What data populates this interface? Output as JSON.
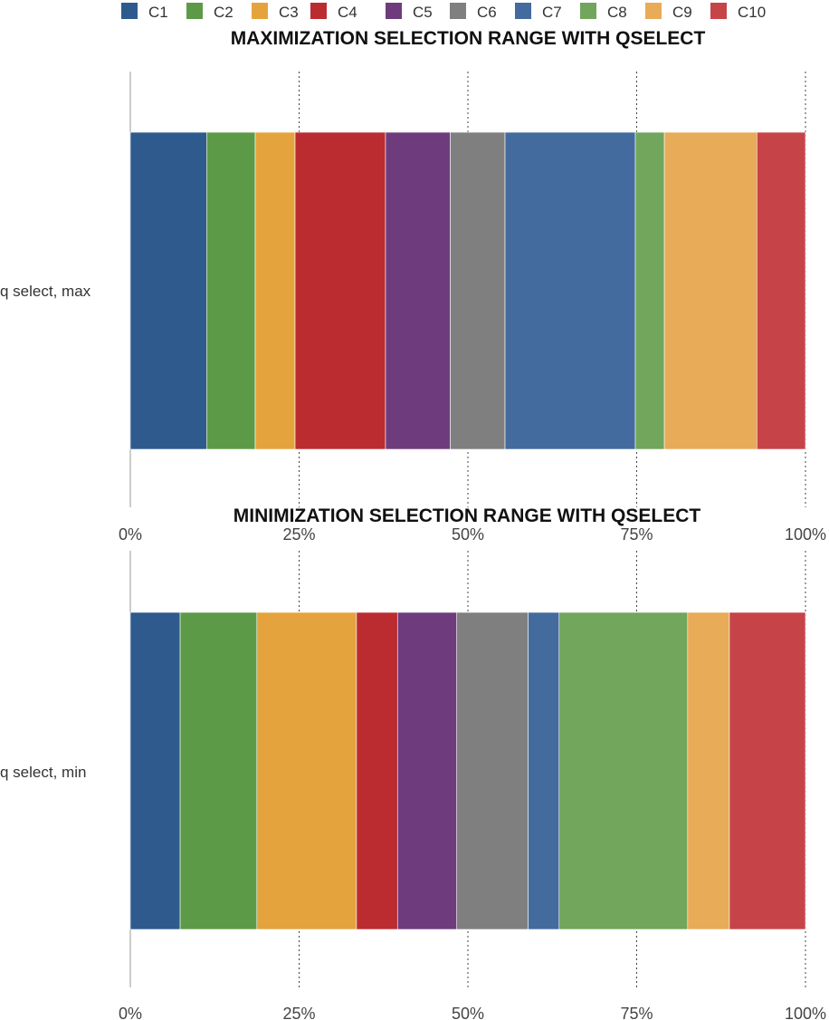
{
  "legend": {
    "series": [
      "C1",
      "C2",
      "C3",
      "C4",
      "C5",
      "C6",
      "C7",
      "C8",
      "C9",
      "C10"
    ],
    "colors": [
      "#2e5a8e",
      "#5d9a48",
      "#e5a33d",
      "#bb2c30",
      "#6e3c7c",
      "#7f7f7f",
      "#436b9e",
      "#71a65c",
      "#e8ab57",
      "#c64448"
    ]
  },
  "chart_data": [
    {
      "type": "bar",
      "orientation": "horizontal",
      "stacked": "percent",
      "title": "MAXIMIZATION SELECTION RANGE WITH QSELECT",
      "categories": [
        "q select, max"
      ],
      "xlim": [
        0,
        100
      ],
      "xticks": [
        "0%",
        "25%",
        "50%",
        "75%",
        "100%"
      ],
      "grid": "vertical dotted",
      "series": [
        {
          "name": "C1",
          "values": [
            11.3
          ]
        },
        {
          "name": "C2",
          "values": [
            7.2
          ]
        },
        {
          "name": "C3",
          "values": [
            5.9
          ]
        },
        {
          "name": "C4",
          "values": [
            13.4
          ]
        },
        {
          "name": "C5",
          "values": [
            9.6
          ]
        },
        {
          "name": "C6",
          "values": [
            8.1
          ]
        },
        {
          "name": "C7",
          "values": [
            19.3
          ]
        },
        {
          "name": "C8",
          "values": [
            4.3
          ]
        },
        {
          "name": "C9",
          "values": [
            13.7
          ]
        },
        {
          "name": "C10",
          "values": [
            7.2
          ]
        }
      ]
    },
    {
      "type": "bar",
      "orientation": "horizontal",
      "stacked": "percent",
      "title": "MINIMIZATION SELECTION RANGE WITH QSELECT",
      "categories": [
        "q select, min"
      ],
      "xlim": [
        0,
        100
      ],
      "xticks": [
        "0%",
        "25%",
        "50%",
        "75%",
        "100%"
      ],
      "grid": "vertical dotted",
      "series": [
        {
          "name": "C1",
          "values": [
            7.4
          ]
        },
        {
          "name": "C2",
          "values": [
            11.4
          ]
        },
        {
          "name": "C3",
          "values": [
            14.8
          ]
        },
        {
          "name": "C4",
          "values": [
            6.1
          ]
        },
        {
          "name": "C5",
          "values": [
            8.8
          ]
        },
        {
          "name": "C6",
          "values": [
            10.6
          ]
        },
        {
          "name": "C7",
          "values": [
            4.6
          ]
        },
        {
          "name": "C8",
          "values": [
            19.1
          ]
        },
        {
          "name": "C9",
          "values": [
            6.2
          ]
        },
        {
          "name": "C10",
          "values": [
            11.3
          ]
        }
      ]
    }
  ]
}
